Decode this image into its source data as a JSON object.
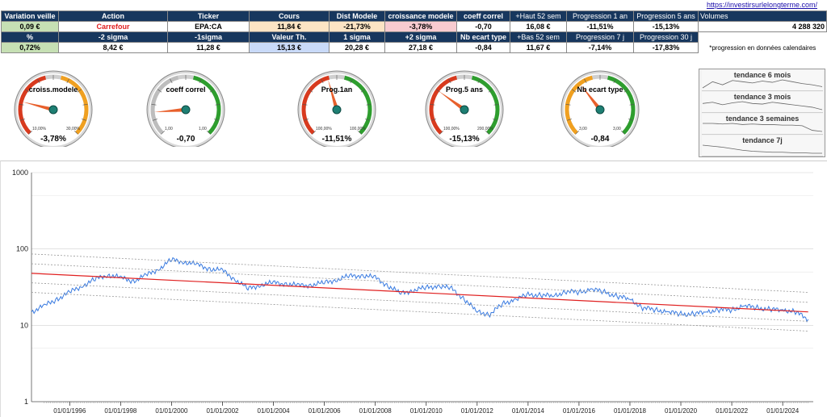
{
  "site_link": "https://investirsurlelongterme.com/",
  "table": {
    "row1_headers": [
      "Variation veille",
      "Action",
      "Ticker",
      "Cours",
      "Dist Modele",
      "croissance modele",
      "coeff correl",
      "+Haut 52 sem",
      "Progression 1 an",
      "Progression 5 ans",
      "Volumes"
    ],
    "row1_values": [
      "0,09 €",
      "Carrefour",
      "EPA:CA",
      "11,84 €",
      "-21,73%",
      "-3,78%",
      "-0,70",
      "16,08 €",
      "-11,51%",
      "-15,13%",
      "4 288 320"
    ],
    "row2_headers": [
      "%",
      "-2 sigma",
      "-1sigma",
      "Valeur Th.",
      "1 sigma",
      "+2 sigma",
      "Nb ecart type",
      "+Bas 52 sem",
      "Progression 7 j",
      "Progression 30 j"
    ],
    "row2_values": [
      "0,72%",
      "8,42 €",
      "11,28 €",
      "15,13 €",
      "20,28 €",
      "27,18 €",
      "-0,84",
      "11,67 €",
      "-7,14%",
      "-17,83%"
    ],
    "note": "*progression en données calendaires"
  },
  "gauges": [
    {
      "label": "croiss.modele",
      "value": "-3,78%",
      "min": "10,00%",
      "max": "30,00%",
      "level": 0.22,
      "zones": [
        "red",
        "orange"
      ]
    },
    {
      "label": "coeff correl",
      "value": "-0,70",
      "min": "1,00",
      "max": "1,00",
      "level": 0.15,
      "zones": [
        "grey",
        "green"
      ]
    },
    {
      "label": "Prog.1an",
      "value": "-11,51%",
      "min": "100,00%",
      "max": "100,00%",
      "level": 0.44,
      "zones": [
        "red",
        "green"
      ]
    },
    {
      "label": "Prog.5 ans",
      "value": "-15,13%",
      "min": "100,00%",
      "max": "200,00%",
      "level": 0.3,
      "zones": [
        "red",
        "green"
      ]
    },
    {
      "label": "Nb ecart type",
      "value": "-0,84",
      "min": "3,00",
      "max": "3,00",
      "level": 0.36,
      "zones": [
        "orange",
        "green"
      ]
    }
  ],
  "trends": [
    {
      "title": "tendance 6 mois",
      "values": [
        5,
        6,
        5.5,
        6.2,
        6,
        5.8,
        6.1,
        5.9,
        6.3,
        6,
        5.7,
        5.5,
        5.2
      ]
    },
    {
      "title": "tendance 3 mois",
      "values": [
        6,
        6.2,
        5.8,
        6.1,
        6.3,
        6,
        5.9,
        6.2,
        6,
        5.8,
        5.6,
        5.4,
        5
      ]
    },
    {
      "title": "tendance 3 semaines",
      "values": [
        6,
        6,
        5.9,
        6,
        5.8,
        5.9,
        5.8,
        5.8,
        5.7,
        5.7,
        5.6,
        4.8,
        4.6
      ]
    },
    {
      "title": "tendance 7j",
      "values": [
        6.2,
        6,
        5.8,
        5.5,
        5.2,
        5,
        4.9,
        4.8,
        4.8,
        4.7,
        4.7,
        4.6,
        4.6
      ]
    }
  ],
  "chart_data": {
    "type": "line",
    "scale": "log",
    "ylim": [
      1,
      1000
    ],
    "yticks": [
      "1",
      "10",
      "100",
      "1000"
    ],
    "xticks": [
      "01/01/1996",
      "01/01/1998",
      "01/01/2000",
      "01/01/2002",
      "01/01/2004",
      "01/01/2006",
      "01/01/2008",
      "01/01/2010",
      "01/01/2012",
      "01/01/2014",
      "01/01/2016",
      "01/01/2018",
      "01/01/2020",
      "01/01/2022",
      "01/01/2024"
    ],
    "xlim": [
      1994.5,
      2025.2
    ],
    "series": [
      {
        "color": "#3a7be0",
        "x": [
          1994.5,
          1995,
          1995.5,
          1996,
          1996.5,
          1997,
          1997.5,
          1998,
          1998.5,
          1999,
          1999.5,
          2000,
          2000.5,
          2001,
          2001.5,
          2002,
          2002.5,
          2003,
          2003.5,
          2004,
          2004.5,
          2005,
          2005.5,
          2006,
          2006.5,
          2007,
          2007.5,
          2008,
          2008.5,
          2009,
          2009.5,
          2010,
          2010.5,
          2011,
          2011.5,
          2012,
          2012.5,
          2013,
          2013.5,
          2014,
          2014.5,
          2015,
          2015.5,
          2016,
          2016.5,
          2017,
          2017.5,
          2018,
          2018.5,
          2019,
          2019.5,
          2020,
          2020.5,
          2021,
          2021.5,
          2022,
          2022.5,
          2023,
          2023.5,
          2024,
          2024.5,
          2025
        ],
        "y": [
          15,
          18,
          22,
          27,
          33,
          40,
          46,
          42,
          38,
          45,
          55,
          72,
          68,
          62,
          55,
          52,
          40,
          30,
          34,
          36,
          35,
          33,
          34,
          36,
          40,
          44,
          45,
          42,
          33,
          26,
          29,
          31,
          33,
          30,
          22,
          15,
          14,
          19,
          22,
          25,
          25,
          24,
          28,
          27,
          30,
          27,
          24,
          22,
          17,
          16,
          15,
          14,
          14,
          15,
          16,
          16,
          18,
          17,
          16,
          16,
          15,
          12
        ]
      },
      {
        "color": "#e02020",
        "x": [
          1994.5,
          2025
        ],
        "y": [
          48,
          15
        ]
      },
      {
        "color": "#999999",
        "dashed": true,
        "x": [
          1994.5,
          2025
        ],
        "y": [
          86,
          27
        ]
      },
      {
        "color": "#999999",
        "dashed": true,
        "x": [
          1994.5,
          2025
        ],
        "y": [
          64,
          20
        ]
      },
      {
        "color": "#999999",
        "dashed": true,
        "x": [
          1994.5,
          2025
        ],
        "y": [
          36,
          11.3
        ]
      },
      {
        "color": "#999999",
        "dashed": true,
        "x": [
          1994.5,
          2025
        ],
        "y": [
          27,
          8.4
        ]
      }
    ]
  }
}
